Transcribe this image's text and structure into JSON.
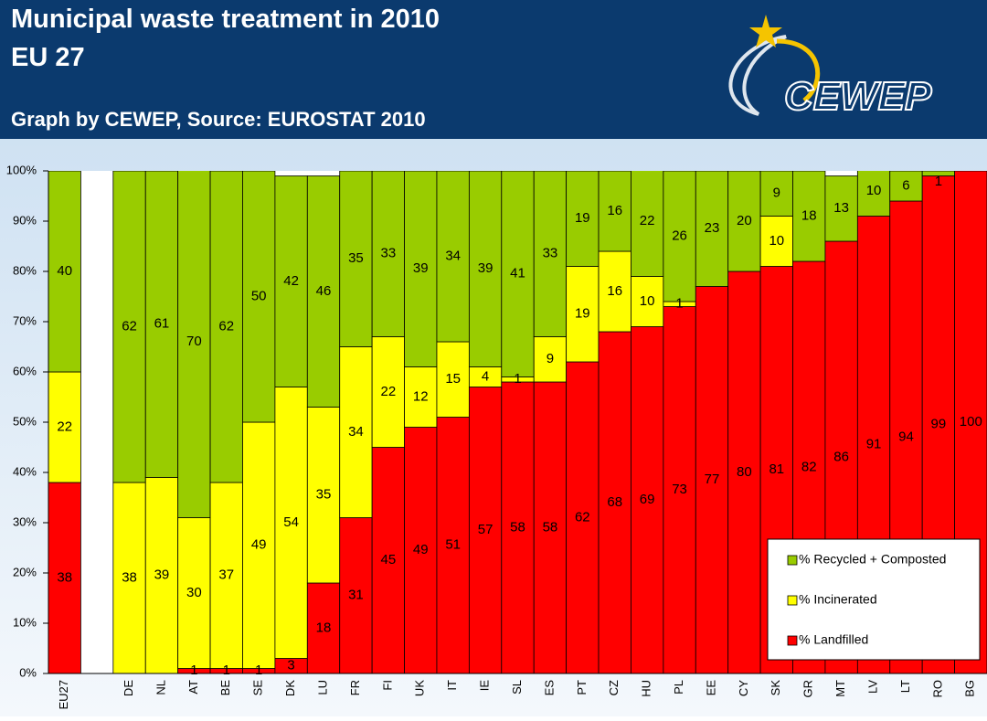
{
  "chart_data": {
    "type": "stacked_bar",
    "title": "Municipal waste treatment in 2010",
    "title_line2": "EU 27",
    "subtitle": "Graph by CEWEP, Source: EUROSTAT 2010",
    "logo": "CEWEP",
    "categories": [
      "EU27",
      null,
      "DE",
      "NL",
      "AT",
      "BE",
      "SE",
      "DK",
      "LU",
      "FR",
      "FI",
      "UK",
      "IT",
      "IE",
      "SL",
      "ES",
      "PT",
      "CZ",
      "HU",
      "PL",
      "EE",
      "CY",
      "SK",
      "GR",
      "MT",
      "LV",
      "LT",
      "RO",
      "BG"
    ],
    "series": [
      {
        "name": "% Landfilled",
        "color": "#ff0000",
        "values": [
          38,
          null,
          0,
          0,
          1,
          1,
          1,
          3,
          18,
          31,
          45,
          49,
          51,
          57,
          58,
          58,
          62,
          68,
          69,
          73,
          77,
          80,
          81,
          82,
          86,
          91,
          94,
          99,
          100
        ]
      },
      {
        "name": "% Incinerated",
        "color": "#ffff00",
        "values": [
          22,
          null,
          38,
          39,
          30,
          37,
          49,
          54,
          35,
          34,
          22,
          12,
          15,
          4,
          1,
          9,
          19,
          16,
          10,
          1,
          0,
          0,
          10,
          0,
          0,
          0,
          0,
          0,
          0
        ]
      },
      {
        "name": "% Recycled + Composted",
        "color": "#99cc00",
        "values": [
          40,
          null,
          62,
          61,
          70,
          62,
          50,
          42,
          46,
          35,
          33,
          39,
          34,
          39,
          41,
          33,
          19,
          16,
          22,
          26,
          23,
          20,
          9,
          18,
          13,
          10,
          6,
          1,
          0
        ]
      }
    ],
    "ylim": [
      0,
      100
    ],
    "yticks": [
      {
        "value": 0,
        "label": "0%"
      },
      {
        "value": 10,
        "label": "10%"
      },
      {
        "value": 20,
        "label": "20%"
      },
      {
        "value": 30,
        "label": "30%"
      },
      {
        "value": 40,
        "label": "40%"
      },
      {
        "value": 50,
        "label": "50%"
      },
      {
        "value": 60,
        "label": "60%"
      },
      {
        "value": 70,
        "label": "70%"
      },
      {
        "value": 80,
        "label": "80%"
      },
      {
        "value": 90,
        "label": "90%"
      },
      {
        "value": 100,
        "label": "100%"
      }
    ],
    "legend": "bottom-right"
  }
}
